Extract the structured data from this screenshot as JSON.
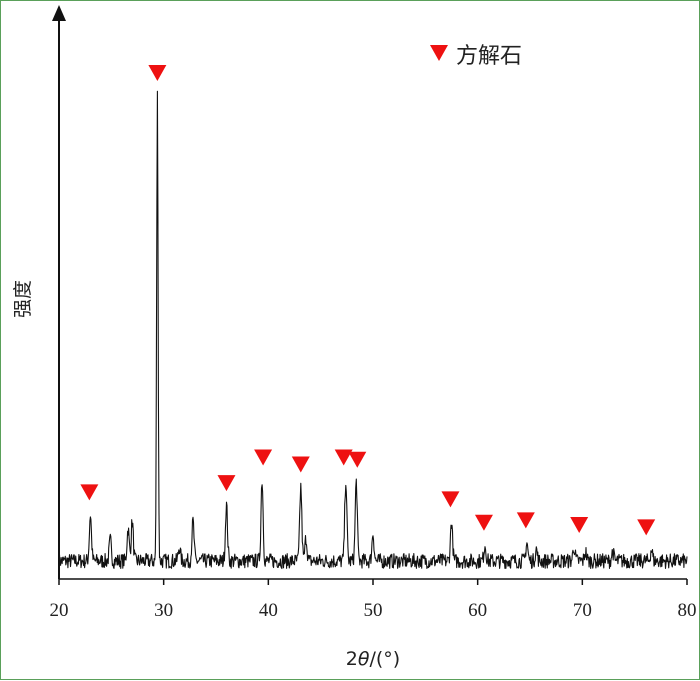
{
  "chart_data": {
    "type": "line",
    "title": "",
    "xlabel_parts": {
      "prefix": "2",
      "symbol": "θ",
      "suffix": "/(°)"
    },
    "ylabel": "强度",
    "xlim": [
      20,
      80
    ],
    "x_ticks": [
      20,
      30,
      40,
      50,
      60,
      70,
      80
    ],
    "y_unit": "relative intensity (no numeric scale shown)",
    "ylim": [
      0,
      100
    ],
    "grid": false,
    "legend": {
      "placement": "top-right",
      "marker": "red-down-triangle",
      "label": "方解石"
    },
    "marker_color": "#ee1111",
    "line_color": "#111111",
    "peaks": [
      {
        "x": 23.0,
        "y": 10.0
      },
      {
        "x": 24.9,
        "y": 4.5
      },
      {
        "x": 26.6,
        "y": 7.0
      },
      {
        "x": 27.0,
        "y": 8.5
      },
      {
        "x": 29.4,
        "y": 100.0
      },
      {
        "x": 31.5,
        "y": 3.0
      },
      {
        "x": 32.8,
        "y": 8.5
      },
      {
        "x": 36.0,
        "y": 12.0
      },
      {
        "x": 39.4,
        "y": 17.5
      },
      {
        "x": 43.1,
        "y": 16.0
      },
      {
        "x": 43.6,
        "y": 5.0
      },
      {
        "x": 47.4,
        "y": 17.5
      },
      {
        "x": 48.4,
        "y": 17.0
      },
      {
        "x": 50.0,
        "y": 6.0
      },
      {
        "x": 57.5,
        "y": 8.5
      },
      {
        "x": 60.7,
        "y": 3.5
      },
      {
        "x": 64.7,
        "y": 4.0
      },
      {
        "x": 65.6,
        "y": 2.5
      },
      {
        "x": 69.2,
        "y": 3.0
      },
      {
        "x": 70.3,
        "y": 2.0
      },
      {
        "x": 72.9,
        "y": 2.0
      },
      {
        "x": 76.6,
        "y": 2.5
      }
    ],
    "calcite_markers": [
      22.9,
      29.4,
      36.0,
      39.5,
      43.1,
      47.2,
      48.5,
      57.4,
      60.6,
      64.6,
      69.7,
      76.1
    ],
    "baseline": 3.0,
    "noise": 1.6
  }
}
